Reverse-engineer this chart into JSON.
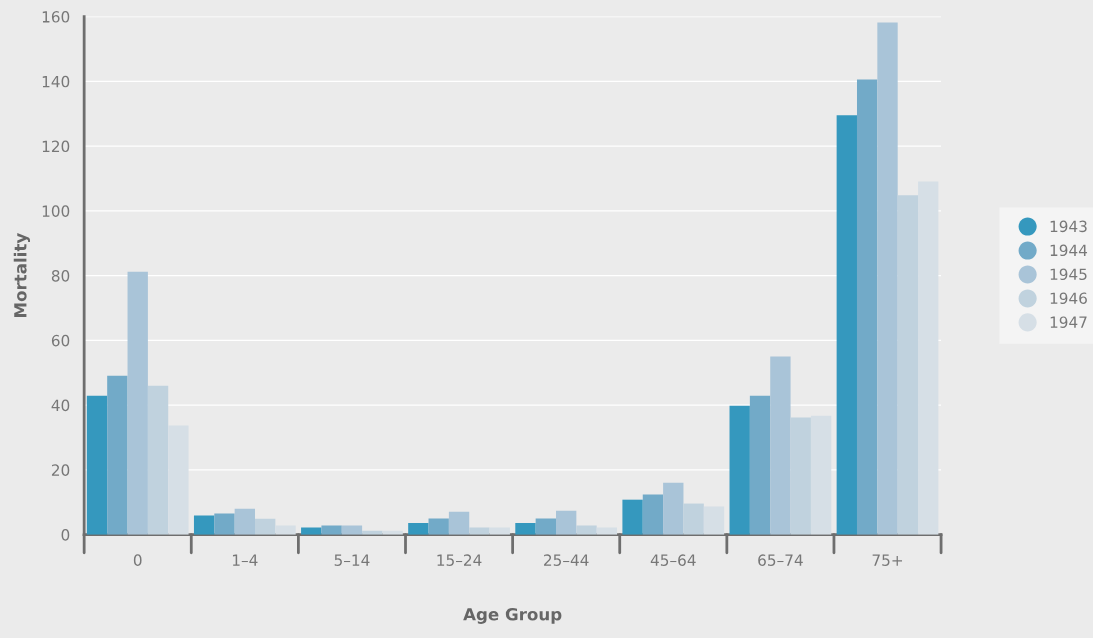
{
  "chart_data": {
    "type": "bar",
    "xlabel": "Age Group",
    "ylabel": "Mortality",
    "categories": [
      "0",
      "1–4",
      "5–14",
      "15–24",
      "25–44",
      "45–64",
      "65–74",
      "75+"
    ],
    "series": [
      {
        "name": "1943",
        "color": "#3598be",
        "values": [
          42.9,
          5.9,
          2.2,
          3.6,
          3.6,
          10.8,
          39.8,
          129.5
        ]
      },
      {
        "name": "1944",
        "color": "#72aac8",
        "values": [
          49.1,
          6.5,
          2.8,
          5.0,
          5.0,
          12.4,
          42.9,
          140.6
        ]
      },
      {
        "name": "1945",
        "color": "#a9c4d8",
        "values": [
          81.2,
          8.0,
          2.8,
          7.1,
          7.4,
          16.0,
          55.0,
          158.2
        ]
      },
      {
        "name": "1946",
        "color": "#c0d2de",
        "values": [
          46.0,
          4.9,
          1.2,
          2.2,
          2.8,
          9.6,
          36.2,
          104.8
        ]
      },
      {
        "name": "1947",
        "color": "#d6dfe6",
        "values": [
          33.7,
          2.8,
          1.2,
          2.2,
          2.2,
          8.7,
          36.7,
          109.1
        ]
      }
    ],
    "ylim": [
      0,
      160
    ],
    "yticks": [
      0,
      20,
      40,
      60,
      80,
      100,
      120,
      140,
      160
    ],
    "grid": "y",
    "legend": "right"
  }
}
